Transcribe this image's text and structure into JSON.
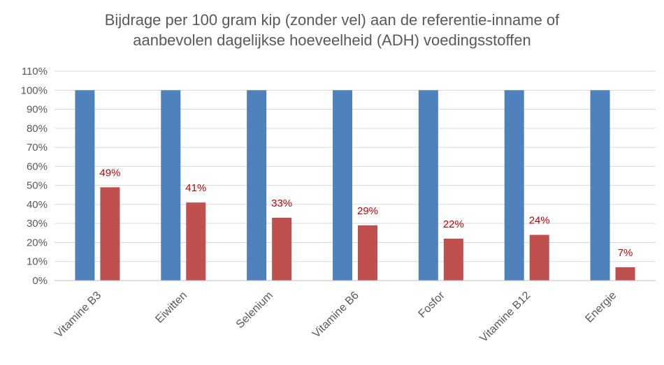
{
  "chart_data": {
    "type": "bar",
    "title_lines": [
      "Bijdrage per 100 gram kip (zonder vel) aan de referentie-inname of",
      "aanbevolen dagelijkse hoeveelheid (ADH) voedingsstoffen"
    ],
    "categories": [
      "Vitamine B3",
      "Eiwitten",
      "Selenium",
      "Vitamine B6",
      "Fosfor",
      "Vitamine B12",
      "Energie"
    ],
    "series": [
      {
        "values": [
          100,
          100,
          100,
          100,
          100,
          100,
          100
        ],
        "color": "#4f81bd",
        "data_labels": false
      },
      {
        "values": [
          49,
          41,
          33,
          29,
          22,
          24,
          7
        ],
        "color": "#c0504d",
        "data_labels": true
      }
    ],
    "data_labels": [
      "49%",
      "41%",
      "33%",
      "29%",
      "22%",
      "24%",
      "7%"
    ],
    "y_ticks": [
      "0%",
      "10%",
      "20%",
      "30%",
      "40%",
      "50%",
      "60%",
      "70%",
      "80%",
      "90%",
      "100%",
      "110%"
    ],
    "ylim": [
      0,
      110
    ],
    "grid": true,
    "legend": "none",
    "xlabel": "",
    "ylabel": ""
  }
}
